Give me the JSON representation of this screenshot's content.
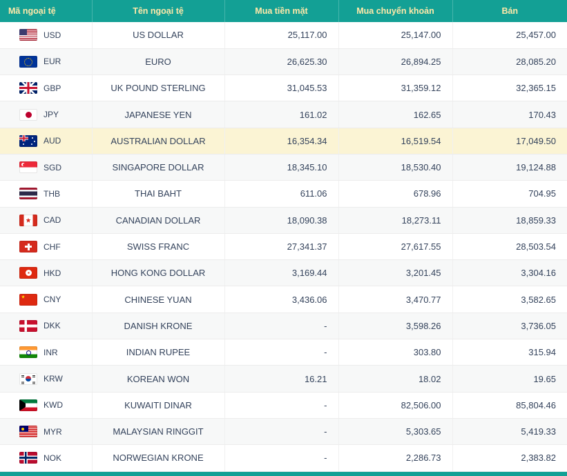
{
  "table": {
    "headers": [
      {
        "label": "Mã ngoại tệ"
      },
      {
        "label": "Tên ngoại tệ"
      },
      {
        "label": "Mua tiền mặt"
      },
      {
        "label": "Mua chuyển khoản"
      },
      {
        "label": "Bán"
      }
    ],
    "rows": [
      {
        "code": "USD",
        "flag_icon": "usd-flag-icon",
        "name": "US DOLLAR",
        "cash_buy": "25,117.00",
        "transfer_buy": "25,147.00",
        "sell": "25,457.00",
        "highlighted": false
      },
      {
        "code": "EUR",
        "flag_icon": "eur-flag-icon",
        "name": "EURO",
        "cash_buy": "26,625.30",
        "transfer_buy": "26,894.25",
        "sell": "28,085.20",
        "highlighted": false
      },
      {
        "code": "GBP",
        "flag_icon": "gbp-flag-icon",
        "name": "UK POUND STERLING",
        "cash_buy": "31,045.53",
        "transfer_buy": "31,359.12",
        "sell": "32,365.15",
        "highlighted": false
      },
      {
        "code": "JPY",
        "flag_icon": "jpy-flag-icon",
        "name": "JAPANESE YEN",
        "cash_buy": "161.02",
        "transfer_buy": "162.65",
        "sell": "170.43",
        "highlighted": false
      },
      {
        "code": "AUD",
        "flag_icon": "aud-flag-icon",
        "name": "AUSTRALIAN DOLLAR",
        "cash_buy": "16,354.34",
        "transfer_buy": "16,519.54",
        "sell": "17,049.50",
        "highlighted": true
      },
      {
        "code": "SGD",
        "flag_icon": "sgd-flag-icon",
        "name": "SINGAPORE DOLLAR",
        "cash_buy": "18,345.10",
        "transfer_buy": "18,530.40",
        "sell": "19,124.88",
        "highlighted": false
      },
      {
        "code": "THB",
        "flag_icon": "thb-flag-icon",
        "name": "THAI BAHT",
        "cash_buy": "611.06",
        "transfer_buy": "678.96",
        "sell": "704.95",
        "highlighted": false
      },
      {
        "code": "CAD",
        "flag_icon": "cad-flag-icon",
        "name": "CANADIAN DOLLAR",
        "cash_buy": "18,090.38",
        "transfer_buy": "18,273.11",
        "sell": "18,859.33",
        "highlighted": false
      },
      {
        "code": "CHF",
        "flag_icon": "chf-flag-icon",
        "name": "SWISS FRANC",
        "cash_buy": "27,341.37",
        "transfer_buy": "27,617.55",
        "sell": "28,503.54",
        "highlighted": false
      },
      {
        "code": "HKD",
        "flag_icon": "hkd-flag-icon",
        "name": "HONG KONG DOLLAR",
        "cash_buy": "3,169.44",
        "transfer_buy": "3,201.45",
        "sell": "3,304.16",
        "highlighted": false
      },
      {
        "code": "CNY",
        "flag_icon": "cny-flag-icon",
        "name": "CHINESE YUAN",
        "cash_buy": "3,436.06",
        "transfer_buy": "3,470.77",
        "sell": "3,582.65",
        "highlighted": false
      },
      {
        "code": "DKK",
        "flag_icon": "dkk-flag-icon",
        "name": "DANISH KRONE",
        "cash_buy": "-",
        "transfer_buy": "3,598.26",
        "sell": "3,736.05",
        "highlighted": false
      },
      {
        "code": "INR",
        "flag_icon": "inr-flag-icon",
        "name": "INDIAN RUPEE",
        "cash_buy": "-",
        "transfer_buy": "303.80",
        "sell": "315.94",
        "highlighted": false
      },
      {
        "code": "KRW",
        "flag_icon": "krw-flag-icon",
        "name": "KOREAN WON",
        "cash_buy": "16.21",
        "transfer_buy": "18.02",
        "sell": "19.65",
        "highlighted": false
      },
      {
        "code": "KWD",
        "flag_icon": "kwd-flag-icon",
        "name": "KUWAITI DINAR",
        "cash_buy": "-",
        "transfer_buy": "82,506.00",
        "sell": "85,804.46",
        "highlighted": false
      },
      {
        "code": "MYR",
        "flag_icon": "myr-flag-icon",
        "name": "MALAYSIAN RINGGIT",
        "cash_buy": "-",
        "transfer_buy": "5,303.65",
        "sell": "5,419.33",
        "highlighted": false
      },
      {
        "code": "NOK",
        "flag_icon": "nok-flag-icon",
        "name": "NORWEGIAN KRONE",
        "cash_buy": "-",
        "transfer_buy": "2,286.73",
        "sell": "2,383.82",
        "highlighted": false
      }
    ]
  },
  "colors": {
    "header_bg": "#13a095",
    "header_text": "#ffe9a9",
    "row_highlight": "#fbf4d4",
    "zebra_row": "#f7f8f8",
    "body_text": "#33425b"
  }
}
